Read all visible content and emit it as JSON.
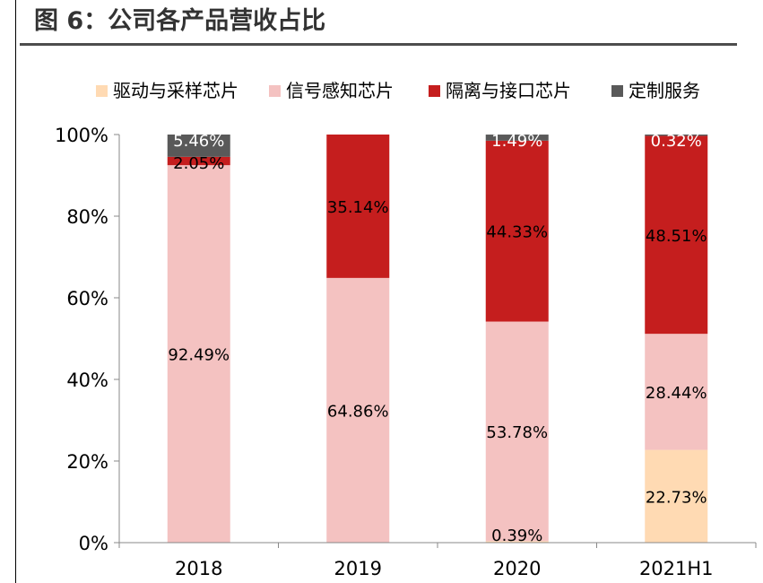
{
  "figure_title": "图 6：公司各产品营收占比",
  "chart_data": {
    "type": "bar",
    "stacked": true,
    "title": "图 6：公司各产品营收占比",
    "xlabel": "",
    "ylabel": "",
    "ylim": [
      0,
      100
    ],
    "y_ticks": [
      "0%",
      "20%",
      "40%",
      "60%",
      "80%",
      "100%"
    ],
    "categories": [
      "2018",
      "2019",
      "2020",
      "2021H1"
    ],
    "legend_position": "top",
    "series": [
      {
        "name": "驱动与采样芯片",
        "color": "#FFDAB3",
        "values": [
          0,
          0,
          0.39,
          22.73
        ],
        "labels": [
          "",
          "",
          "0.39%",
          "22.73%"
        ]
      },
      {
        "name": "信号感知芯片",
        "color": "#F4C2C1",
        "values": [
          92.49,
          64.86,
          53.78,
          28.44
        ],
        "labels": [
          "92.49%",
          "64.86%",
          "53.78%",
          "28.44%"
        ]
      },
      {
        "name": "隔离与接口芯片",
        "color": "#C51E1E",
        "values": [
          2.05,
          35.14,
          44.33,
          48.51
        ],
        "labels": [
          "2.05%",
          "35.14%",
          "44.33%",
          "48.51%"
        ]
      },
      {
        "name": "定制服务",
        "color": "#595959",
        "values": [
          5.46,
          0,
          1.49,
          0.32
        ],
        "labels": [
          "5.46%",
          "",
          "1.49%",
          "0.32%"
        ]
      }
    ]
  }
}
